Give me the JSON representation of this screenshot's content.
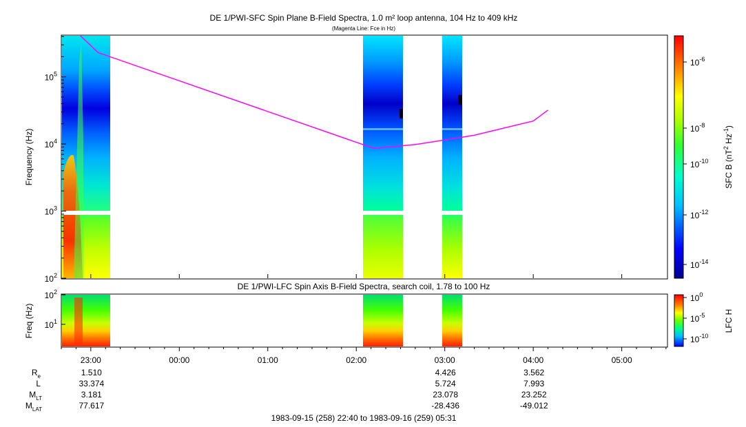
{
  "titles": {
    "main": "DE 1/PWI-SFC  Spin Plane B-Field Spectra, 1.0 m² loop antenna, 104 Hz to 409 kHz",
    "sub": "(Magenta Line: Fce in Hz)",
    "lower": "DE 1/PWI-LFC  Spin Axis B-Field Spectra, search coil, 1.78 to 100 Hz",
    "footer": "1983-09-15 (258) 22:40 to 1983-09-16 (259) 05:31"
  },
  "colors": {
    "magenta_line": "#ff00ff"
  },
  "chart_data": [
    {
      "type": "heatmap",
      "title": "DE 1/PWI-SFC  Spin Plane B-Field Spectra, 1.0 m² loop antenna, 104 Hz to 409 kHz",
      "ylabel": "Frequency (Hz)",
      "yscale": "log",
      "ylim": [
        100,
        409000
      ],
      "yticks": [
        "10^2",
        "10^3",
        "10^4",
        "10^5"
      ],
      "xlabel": "",
      "xticks": [
        "23:00",
        "00:00",
        "01:00",
        "02:00",
        "03:00",
        "04:00",
        "05:00"
      ],
      "xlim_minutes_of_day": [
        1360,
        1771
      ],
      "colorbar": {
        "label": "SFC B (nT^2 Hz^-1)",
        "scale": "log",
        "ticks": [
          "10^-6",
          "10^-8",
          "10^-10",
          "10^-12",
          "10^-14"
        ]
      },
      "data_segments": [
        {
          "start": "22:40",
          "end": "23:12"
        },
        {
          "start": "02:12",
          "end": "02:44"
        },
        {
          "start": "03:00",
          "end": "03:15"
        }
      ],
      "overlay_series": [
        {
          "name": "Fce",
          "color": "#ff00ff",
          "points": [
            [
              "22:53",
              409000
            ],
            [
              "23:05",
              230000
            ],
            [
              "02:12",
              8600
            ],
            [
              "02:40",
              9800
            ],
            [
              "03:00",
              11500
            ],
            [
              "03:20",
              13500
            ],
            [
              "04:00",
              22000
            ],
            [
              "04:10",
              32000
            ]
          ]
        }
      ]
    },
    {
      "type": "heatmap",
      "title": "DE 1/PWI-LFC  Spin Axis B-Field Spectra, search coil, 1.78 to 100 Hz",
      "ylabel": "Freq (Hz)",
      "yscale": "log",
      "ylim": [
        1.78,
        100
      ],
      "yticks": [
        "10^1",
        "10^2"
      ],
      "xticks": [
        "23:00",
        "00:00",
        "01:00",
        "02:00",
        "03:00",
        "04:00",
        "05:00"
      ],
      "colorbar": {
        "label": "LFC H",
        "scale": "log",
        "ticks": [
          "10^0",
          "10^-5",
          "10^-10"
        ]
      }
    }
  ],
  "ephemeris": {
    "labels": [
      "R",
      "L",
      "M",
      "M"
    ],
    "label_subs": [
      "e",
      "",
      "LT",
      "LAT"
    ],
    "columns": [
      {
        "time": "23:00",
        "values": [
          "1.510",
          "33.374",
          "3.181",
          "77.617"
        ]
      },
      {
        "time": "03:00",
        "values": [
          "4.426",
          "5.724",
          "23.078",
          "-28.436"
        ]
      },
      {
        "time": "04:00",
        "values": [
          "3.562",
          "7.993",
          "23.252",
          "-49.012"
        ]
      }
    ]
  }
}
